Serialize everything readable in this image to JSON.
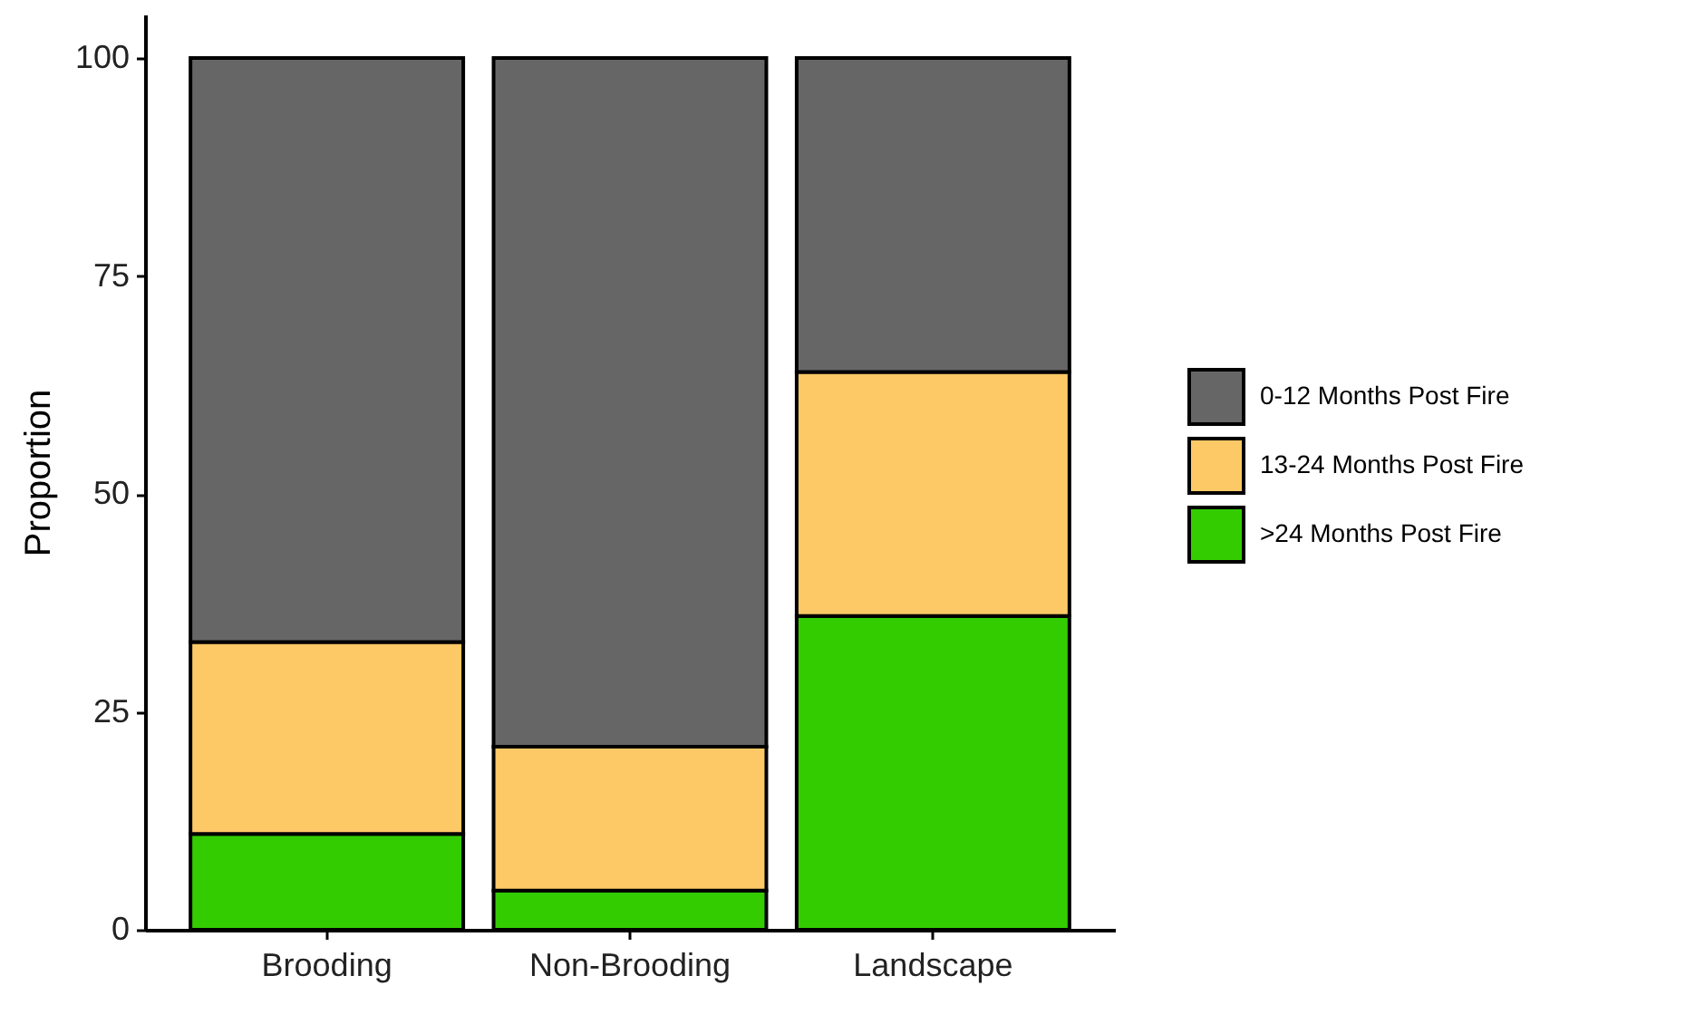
{
  "chart_data": {
    "type": "bar",
    "stacked": true,
    "ylabel": "Proportion",
    "categories": [
      "Brooding",
      "Non-Brooding",
      "Landscape"
    ],
    "series": [
      {
        "name": ">24 Months Post Fire",
        "color": "#33cc00",
        "values": [
          11,
          4.5,
          36
        ]
      },
      {
        "name": "13-24 Months Post Fire",
        "color": "#fdc966",
        "values": [
          22,
          16.5,
          28
        ]
      },
      {
        "name": "0-12 Months Post Fire",
        "color": "#666666",
        "values": [
          67,
          79,
          36
        ]
      }
    ],
    "ylim": [
      0,
      105
    ],
    "yticks": [
      0,
      25,
      50,
      75,
      100
    ],
    "grid": false,
    "legend": "right"
  }
}
